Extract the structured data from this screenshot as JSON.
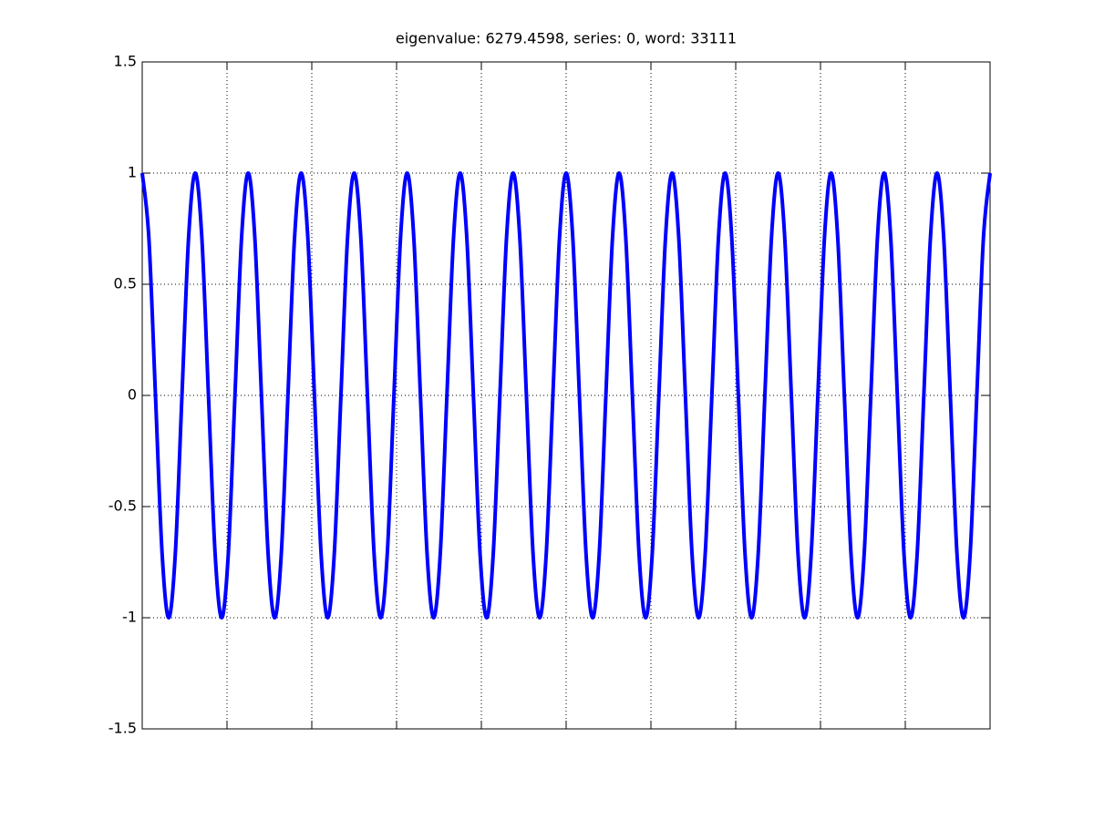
{
  "chart_data": {
    "type": "line",
    "title": "eigenvalue: 6279.4598, series: 0, word: 33111",
    "x": [
      0,
      1,
      2,
      3,
      4,
      5,
      6,
      7,
      8,
      9,
      10,
      11,
      12,
      13,
      14,
      15,
      16,
      17,
      18,
      19,
      20,
      21,
      22,
      23,
      24,
      25,
      26,
      27,
      28,
      29,
      30,
      31,
      32,
      33,
      34,
      35,
      36,
      37,
      38,
      39,
      40,
      41,
      42,
      43,
      44,
      45,
      46,
      47,
      48,
      49,
      50,
      51,
      52,
      53,
      54,
      55,
      56,
      57,
      58,
      59,
      60,
      61,
      62,
      63,
      64,
      65,
      66,
      67,
      68,
      69,
      70,
      71,
      72,
      73,
      74,
      75,
      76,
      77,
      78,
      79,
      80,
      81,
      82,
      83,
      84,
      85,
      86,
      87,
      88,
      89,
      90,
      91,
      92,
      93,
      94,
      95,
      96,
      97,
      98,
      99,
      100,
      101,
      102,
      103,
      104,
      105,
      106,
      107,
      108,
      109,
      110,
      111,
      112,
      113,
      114,
      115,
      116,
      117,
      118,
      119,
      120,
      121,
      122,
      123,
      124,
      125,
      126,
      127,
      128
    ],
    "values": [
      1,
      0.71,
      0,
      -0.71,
      -1,
      -0.71,
      0,
      0.71,
      1,
      0.71,
      0,
      -0.71,
      -1,
      -0.71,
      0,
      0.71,
      1,
      0.71,
      0,
      -0.71,
      -1,
      -0.71,
      0,
      0.71,
      1,
      0.71,
      0,
      -0.71,
      -1,
      -0.71,
      0,
      0.71,
      1,
      0.71,
      0,
      -0.71,
      -1,
      -0.71,
      0,
      0.71,
      1,
      0.71,
      0,
      -0.71,
      -1,
      -0.71,
      0,
      0.71,
      1,
      0.71,
      0,
      -0.71,
      -1,
      -0.71,
      0,
      0.71,
      1,
      0.71,
      0,
      -0.71,
      -1,
      -0.71,
      0,
      0.71,
      1,
      0.71,
      0,
      -0.71,
      -1,
      -0.71,
      0,
      0.71,
      1,
      0.71,
      0,
      -0.71,
      -1,
      -0.71,
      0,
      0.71,
      1,
      0.71,
      0,
      -0.71,
      -1,
      -0.71,
      0,
      0.71,
      1,
      0.71,
      0,
      -0.71,
      -1,
      -0.71,
      0,
      0.71,
      1,
      0.71,
      0,
      -0.71,
      -1,
      -0.71,
      0,
      0.71,
      1,
      0.71,
      0,
      -0.71,
      -1,
      -0.71,
      0,
      0.71,
      1,
      0.71,
      0,
      -0.71,
      -1,
      -0.71,
      0,
      0.71,
      1,
      0.71,
      0,
      -0.71,
      -1,
      -0.71,
      0,
      0.71,
      1
    ],
    "color": "#0000ff",
    "xlim": [
      0,
      128
    ],
    "xticks": [
      12.8,
      25.6,
      38.4,
      51.2,
      64,
      76.8,
      89.6,
      102.4,
      115.2
    ],
    "ylim": [
      -1.5,
      1.5
    ],
    "yticks": [
      -1.5,
      -1,
      -0.5,
      0,
      0.5,
      1,
      1.5
    ],
    "grid": true
  }
}
